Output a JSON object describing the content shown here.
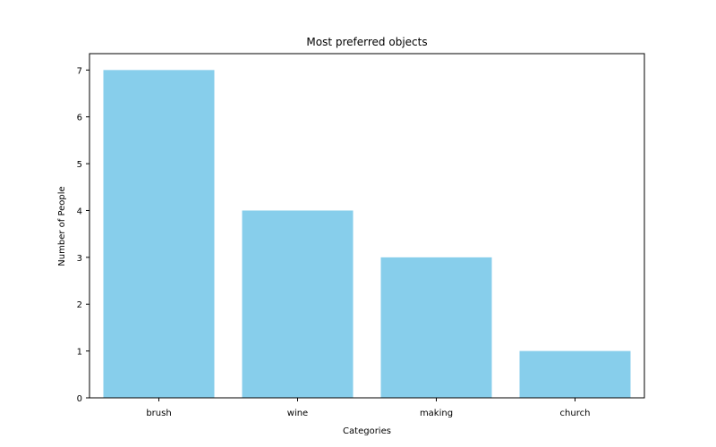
{
  "chart_data": {
    "type": "bar",
    "title": "Most preferred objects",
    "xlabel": "Categories",
    "ylabel": "Number of People",
    "categories": [
      "brush",
      "wine",
      "making",
      "church"
    ],
    "values": [
      7,
      4,
      3,
      1
    ],
    "ylim": [
      0,
      7.35
    ],
    "yticks": [
      0,
      1,
      2,
      3,
      4,
      5,
      6,
      7
    ],
    "bar_color": "#87ceeb",
    "grid": false,
    "legend": "none"
  }
}
